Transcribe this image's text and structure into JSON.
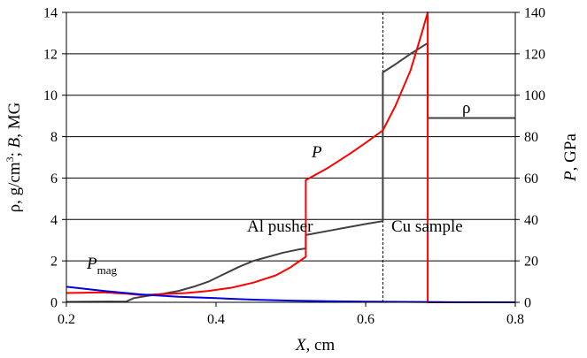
{
  "chart_data": {
    "type": "line",
    "xlabel": {
      "var": "X",
      "unit": ", cm"
    },
    "ylabel_left": {
      "rho": "ρ, g/cm",
      "sup": "3",
      "sep": "; ",
      "b": "B",
      "unit": ", MG"
    },
    "ylabel_right": {
      "var": "P",
      "unit": ", GPa"
    },
    "xlim": [
      0.2,
      0.8
    ],
    "ylim_left": [
      0,
      14
    ],
    "ylim_right": [
      0,
      140
    ],
    "x_ticks": [
      "0.2",
      "0.4",
      "0.6",
      "0.8"
    ],
    "y_left_ticks": [
      "0",
      "2",
      "4",
      "6",
      "8",
      "10",
      "12",
      "14"
    ],
    "y_right_ticks": [
      "0",
      "20",
      "40",
      "60",
      "80",
      "100",
      "120",
      "140"
    ],
    "grid": "horizontal",
    "interface_x": 0.623,
    "annotations": {
      "al_pusher": "Al pusher",
      "cu_sample": "Cu sample",
      "rho": "ρ",
      "p": "P",
      "pmag_main": "P",
      "pmag_sub": "mag"
    },
    "series": [
      {
        "color": "#404040",
        "axis": "left",
        "points": [
          [
            0.2,
            0.02
          ],
          [
            0.28,
            0.04
          ],
          [
            0.29,
            0.2
          ],
          [
            0.31,
            0.32
          ],
          [
            0.33,
            0.42
          ],
          [
            0.35,
            0.55
          ],
          [
            0.37,
            0.75
          ],
          [
            0.39,
            1.0
          ],
          [
            0.41,
            1.35
          ],
          [
            0.43,
            1.7
          ],
          [
            0.45,
            2.0
          ],
          [
            0.47,
            2.2
          ],
          [
            0.49,
            2.4
          ],
          [
            0.51,
            2.55
          ],
          [
            0.52,
            2.6
          ],
          [
            0.52,
            3.25
          ],
          [
            0.55,
            3.45
          ],
          [
            0.58,
            3.65
          ],
          [
            0.6,
            3.78
          ],
          [
            0.623,
            3.92
          ],
          [
            0.623,
            11.1
          ],
          [
            0.64,
            11.5
          ],
          [
            0.66,
            12.0
          ],
          [
            0.68,
            12.45
          ],
          [
            0.683,
            12.5
          ],
          [
            0.683,
            8.9
          ],
          [
            0.8,
            8.9
          ]
        ]
      },
      {
        "color": "#ff0000",
        "axis": "right",
        "points": [
          [
            0.2,
            4.5
          ],
          [
            0.25,
            4.8
          ],
          [
            0.28,
            4.2
          ],
          [
            0.3,
            3.5
          ],
          [
            0.33,
            4.0
          ],
          [
            0.36,
            4.5
          ],
          [
            0.39,
            5.5
          ],
          [
            0.42,
            7.0
          ],
          [
            0.45,
            9.5
          ],
          [
            0.48,
            13.0
          ],
          [
            0.5,
            17.0
          ],
          [
            0.52,
            22.0
          ],
          [
            0.52,
            59.0
          ],
          [
            0.55,
            65.0
          ],
          [
            0.58,
            72.0
          ],
          [
            0.6,
            77.0
          ],
          [
            0.623,
            83.0
          ],
          [
            0.64,
            95.0
          ],
          [
            0.66,
            112.0
          ],
          [
            0.675,
            130.0
          ],
          [
            0.683,
            140.0
          ],
          [
            0.683,
            0.0
          ],
          [
            0.78,
            0.0
          ]
        ]
      },
      {
        "color": "#0000e0",
        "axis": "left",
        "points": [
          [
            0.2,
            0.75
          ],
          [
            0.25,
            0.55
          ],
          [
            0.3,
            0.38
          ],
          [
            0.35,
            0.27
          ],
          [
            0.4,
            0.2
          ],
          [
            0.45,
            0.13
          ],
          [
            0.5,
            0.08
          ],
          [
            0.55,
            0.05
          ],
          [
            0.6,
            0.03
          ],
          [
            0.65,
            0.02
          ],
          [
            0.7,
            0.01
          ],
          [
            0.8,
            0.0
          ]
        ]
      }
    ]
  }
}
